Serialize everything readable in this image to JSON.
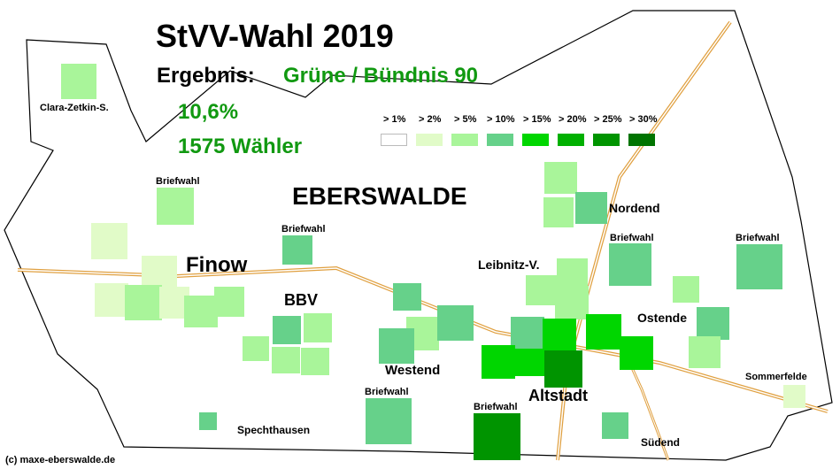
{
  "title": "StVV-Wahl 2019",
  "result_label": "Ergebnis:",
  "party": "Grüne / Bündnis 90",
  "percent": "10,6%",
  "voters": "1575 Wähler",
  "city_label": "EBERSWALDE",
  "copyright": "(c) maxe-eberswalde.de",
  "colors": {
    "party_text": "#119911",
    "boundary": "#000000",
    "road": "#e0a040",
    "bin1": "#ffffff",
    "bin2": "#e1fbc8",
    "bin3": "#a9f59a",
    "bin4": "#66d18a",
    "bin5": "#00d600",
    "bin6": "#00b000",
    "bin7": "#009400",
    "bin8": "#007400"
  },
  "legend": [
    {
      "label": "> 1%",
      "color": "#ffffff"
    },
    {
      "label": "> 2%",
      "color": "#e1fbc8"
    },
    {
      "label": "> 5%",
      "color": "#a9f59a"
    },
    {
      "label": "> 10%",
      "color": "#66d18a"
    },
    {
      "label": "> 15%",
      "color": "#00d600"
    },
    {
      "label": "> 20%",
      "color": "#00b000"
    },
    {
      "label": "> 25%",
      "color": "#009400"
    },
    {
      "label": "> 30%",
      "color": "#007400"
    }
  ],
  "place_labels": {
    "finow": "Finow",
    "bbv": "BBV",
    "westend": "Westend",
    "altstadt": "Altstadt",
    "nordend": "Nordend",
    "leibnitz": "Leibnitz-V.",
    "ostende": "Ostende",
    "clara": "Clara-Zetkin-S.",
    "spechthausen": "Spechthausen",
    "suedend": "Südend",
    "sommerfelde": "Sommerfelde"
  },
  "briefwahl_label": "Briefwahl"
}
